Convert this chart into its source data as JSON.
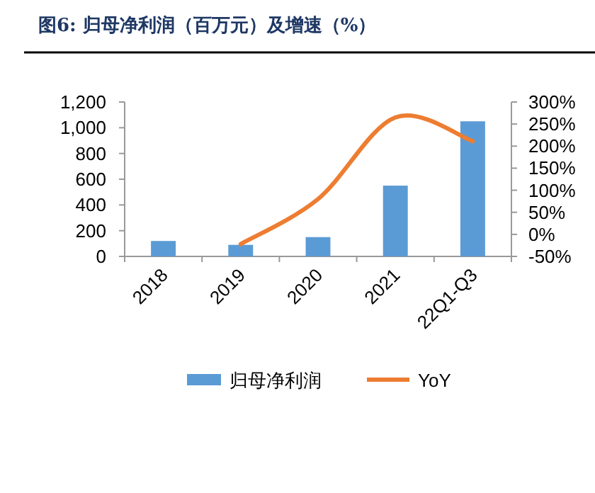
{
  "chart_data": {
    "type": "bar",
    "title": "图6:  归母净利润（百万元）及增速（%）",
    "categories": [
      "2018",
      "2019",
      "2020",
      "2021",
      "22Q1-Q3"
    ],
    "series": [
      {
        "name": "归母净利润",
        "color": "#5b9bd5",
        "values": [
          120,
          90,
          150,
          550,
          1050
        ]
      },
      {
        "name": "YoY",
        "type": "line",
        "axis": "y2",
        "color": "#ed7d31",
        "values": [
          null,
          -22,
          80,
          265,
          211
        ]
      }
    ],
    "ylim": [
      0,
      1200
    ],
    "yticks": [
      0,
      {
        "value": 200,
        "label": "200"
      },
      {
        "value": 400,
        "label": "400"
      },
      {
        "value": 600,
        "label": "600"
      },
      {
        "value": 800,
        "label": "800"
      },
      {
        "value": 1000,
        "label": "1,000"
      },
      {
        "value": 1200,
        "label": "1,200"
      }
    ],
    "y2lim": [
      -50,
      300
    ],
    "y2ticks": [
      {
        "value": -50,
        "label": "-50%"
      },
      {
        "value": 0,
        "label": "0%"
      },
      {
        "value": 50,
        "label": "50%"
      },
      {
        "value": 100,
        "label": "100%"
      },
      {
        "value": 150,
        "label": "150%"
      },
      {
        "value": 200,
        "label": "200%"
      },
      {
        "value": 250,
        "label": "250%"
      },
      {
        "value": 300,
        "label": "300%"
      }
    ],
    "legend": "bottom",
    "grid": false
  }
}
